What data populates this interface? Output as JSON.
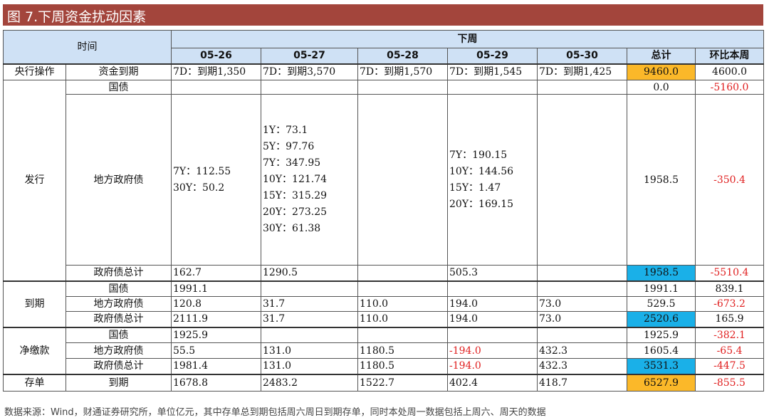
{
  "title": "图 7.下周资金扰动因素",
  "header": {
    "time": "时间",
    "next_week": "下周",
    "dates": [
      "05-26",
      "05-27",
      "05-28",
      "05-29",
      "05-30"
    ],
    "total": "总计",
    "wow": "环比本周"
  },
  "labels": {
    "central_bank": "央行操作",
    "fund_maturity": "资金到期",
    "issuance": "发行",
    "maturity": "到期",
    "net_payment": "净缴款",
    "cd": "存单",
    "treasury": "国债",
    "local_gov": "地方政府债",
    "gov_total": "政府债总计",
    "cd_maturity": "到期"
  },
  "rows": {
    "fund_maturity": [
      "7D：到期1,350",
      "7D：到期3,570",
      "7D：到期1,570",
      "7D：到期1,545",
      "7D：到期1,425",
      "9460.0",
      "4600.0"
    ],
    "iss_treasury": [
      "",
      "",
      "",
      "",
      "",
      "0.0",
      "-5160.0"
    ],
    "iss_local": [
      "7Y：112.55\n30Y：50.2",
      "1Y：73.1\n5Y：97.76\n7Y：347.95\n10Y：121.74\n15Y：315.29\n20Y：273.25\n30Y：61.38",
      "",
      "7Y：190.15\n10Y：144.56\n15Y：1.47\n20Y：169.15",
      "",
      "1958.5",
      "-350.4"
    ],
    "iss_total": [
      "162.7",
      "1290.5",
      "",
      "505.3",
      "",
      "1958.5",
      "-5510.4"
    ],
    "mat_treasury": [
      "1991.1",
      "",
      "",
      "",
      "",
      "1991.1",
      "839.1"
    ],
    "mat_local": [
      "120.8",
      "31.7",
      "110.0",
      "194.0",
      "73.0",
      "529.5",
      "-673.2"
    ],
    "mat_total": [
      "2111.9",
      "31.7",
      "110.0",
      "194.0",
      "73.0",
      "2520.6",
      "165.9"
    ],
    "net_treasury": [
      "1925.9",
      "",
      "",
      "",
      "",
      "1925.9",
      "-382.1"
    ],
    "net_local": [
      "55.5",
      "131.0",
      "1180.5",
      "-194.0",
      "432.3",
      "1605.4",
      "-65.4"
    ],
    "net_total": [
      "1981.4",
      "131.0",
      "1180.5",
      "-194.0",
      "432.3",
      "3531.3",
      "-447.5"
    ],
    "cd_maturity": [
      "1678.8",
      "2483.2",
      "1522.7",
      "402.4",
      "418.7",
      "6527.9",
      "-855.5"
    ]
  },
  "colors": {
    "title_bg": "#a3453c",
    "header_bg": "#cfe1f5",
    "highlight_orange": "#fbb829",
    "highlight_blue": "#1ab0e8",
    "negative": "#e02020"
  },
  "footer": "数据来源：Wind，财通证券研究所，单位亿元，其中存单总到期包括周六周日到期存单，同时本处周一数据包括上周六、周天的数据"
}
